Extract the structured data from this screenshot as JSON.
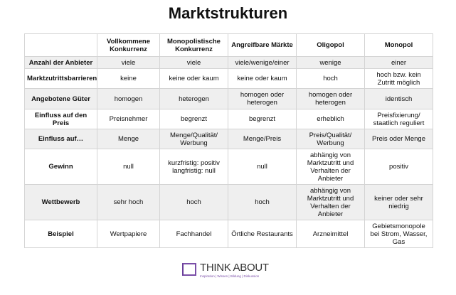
{
  "title": "Marktstrukturen",
  "columns": [
    "",
    "Vollkommene Konkurrenz",
    "Monopolistische Konkurrenz",
    "Angreifbare Märkte",
    "Oligopol",
    "Monopol"
  ],
  "rows": [
    [
      "Anzahl der Anbieter",
      "viele",
      "viele",
      "viele/wenige/einer",
      "wenige",
      "einer"
    ],
    [
      "Marktzutrittsbarrieren",
      "keine",
      "keine oder kaum",
      "keine oder kaum",
      "hoch",
      "hoch bzw. kein Zutritt möglich"
    ],
    [
      "Angebotene Güter",
      "homogen",
      "heterogen",
      "homogen oder heterogen",
      "homogen oder heterogen",
      "identisch"
    ],
    [
      "Einfluss auf den Preis",
      "Preisnehmer",
      "begrenzt",
      "begrenzt",
      "erheblich",
      "Preisfixierung/ staatlich reguliert"
    ],
    [
      "Einfluss auf…",
      "Menge",
      "Menge/Qualität/ Werbung",
      "Menge/Preis",
      "Preis/Qualität/ Werbung",
      "Preis oder Menge"
    ],
    [
      "Gewinn",
      "null",
      "kurzfristig: positiv langfristig: null",
      "null",
      "abhängig von Marktzutritt und Verhalten der Anbieter",
      "positiv"
    ],
    [
      "Wettbewerb",
      "sehr hoch",
      "hoch",
      "hoch",
      "abhängig von Marktzutritt und Verhalten der Anbieter",
      "keiner oder sehr niedrig"
    ],
    [
      "Beispiel",
      "Wertpapiere",
      "Fachhandel",
      "Örtliche Restaurants",
      "Arzneimittel",
      "Gebietsmonopole bei Strom, Wasser, Gas"
    ]
  ],
  "logo": {
    "name": "THINK ABOUT",
    "tagline": "Inspiration | Wissen | Bildung | Diskussion",
    "color": "#7a4ea8"
  }
}
